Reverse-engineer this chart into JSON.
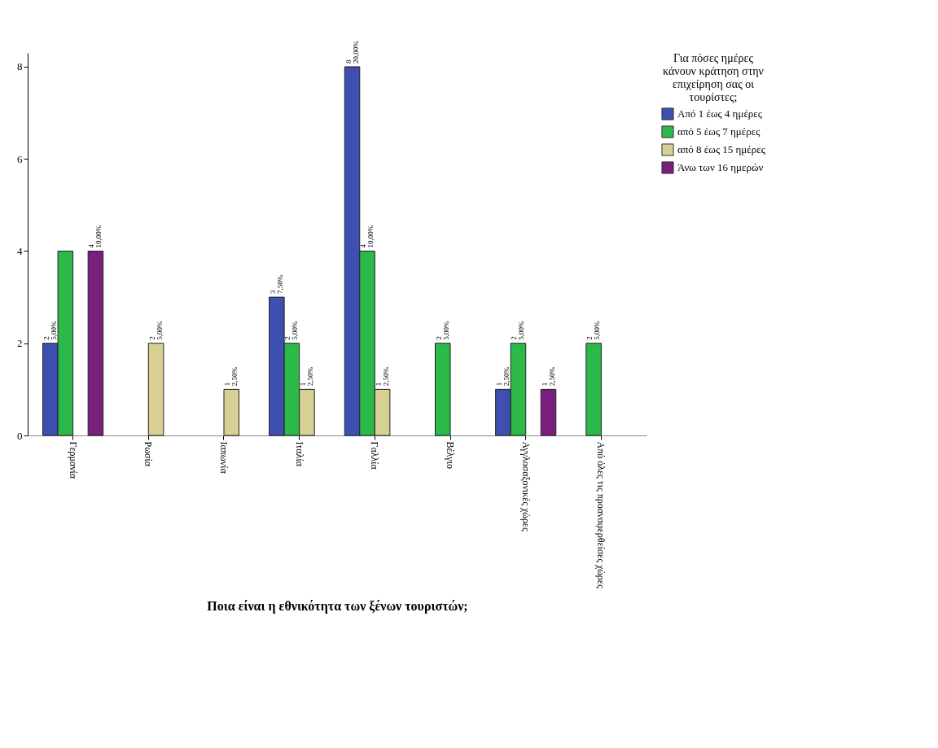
{
  "chart_data": {
    "type": "bar",
    "xlabel": "Ποια είναι η εθνικότητα των ξένων τουριστών;",
    "legend_title": "Για πόσες ημέρες κάνουν κράτηση στην επιχείρηση σας οι τουρίστες;",
    "categories": [
      "Γερμανία",
      "Ρωσία",
      "Ιαπωνία",
      "Ιταλία",
      "Γαλλία",
      "Βέλγιο",
      "Αγγλοσαξονικές χώρες",
      "Από όλες τις προαναφερθείσες χώρες"
    ],
    "series": [
      {
        "name": "Από 1 έως 4 ημέρες",
        "color": "#3d4fb0",
        "values": [
          2,
          null,
          null,
          3,
          8,
          null,
          1,
          null
        ],
        "value_labels": [
          "2\n5,00%",
          null,
          null,
          "3\n7,50%",
          "8\n20,00%",
          null,
          "1\n2,50%",
          null
        ]
      },
      {
        "name": "από 5 έως 7 ημέρες",
        "color": "#2db84a",
        "values": [
          4,
          null,
          null,
          2,
          4,
          2,
          2,
          2
        ],
        "value_labels": [
          null,
          null,
          null,
          "2\n5,00%",
          "4\n10,00%",
          "2\n5,00%",
          "2\n5,00%",
          "2\n5,00%"
        ]
      },
      {
        "name": "από 8 έως 15 ημέρες",
        "color": "#d8cf94",
        "values": [
          null,
          2,
          1,
          1,
          1,
          null,
          null,
          null
        ],
        "value_labels": [
          null,
          "2\n5,00%",
          "1\n2,50%",
          "1\n2,50%",
          "1\n2,50%",
          null,
          null,
          null
        ]
      },
      {
        "name": "Άνω των 16 ημερών",
        "color": "#7b1f7f",
        "values": [
          4,
          null,
          null,
          null,
          null,
          null,
          1,
          null
        ],
        "value_labels": [
          "4\n10,00%",
          null,
          null,
          null,
          null,
          null,
          "1\n2,50%",
          null
        ]
      }
    ],
    "ylim": [
      0,
      8.3
    ],
    "yticks": [
      0,
      2,
      4,
      6,
      8
    ],
    "grid": false,
    "legend": "top right"
  }
}
